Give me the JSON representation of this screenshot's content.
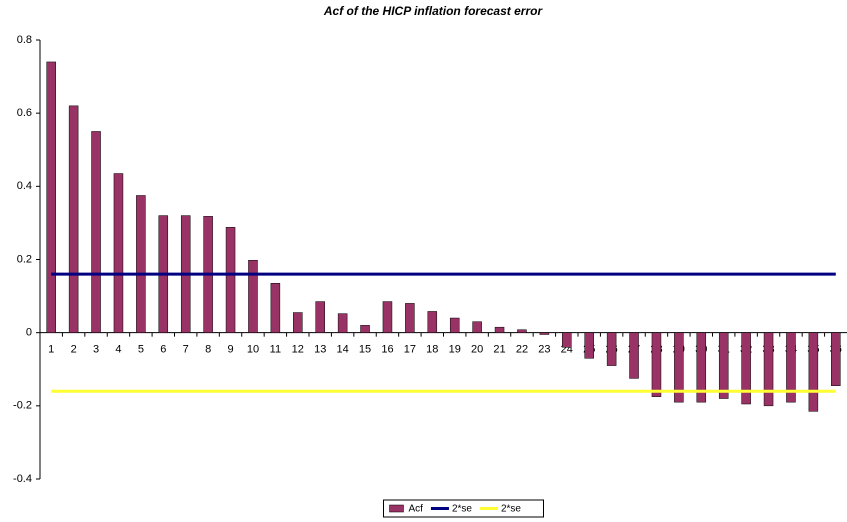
{
  "chart_data": {
    "type": "bar",
    "title": "Acf of the HICP inflation forecast error",
    "categories": [
      "1",
      "2",
      "3",
      "4",
      "5",
      "6",
      "7",
      "8",
      "9",
      "10",
      "11",
      "12",
      "13",
      "14",
      "15",
      "16",
      "17",
      "18",
      "19",
      "20",
      "21",
      "22",
      "23",
      "24",
      "25",
      "26",
      "27",
      "28",
      "29",
      "30",
      "31",
      "32",
      "33",
      "34",
      "35",
      "36"
    ],
    "series": [
      {
        "name": "Acf",
        "type": "bar",
        "color": "#993366",
        "values": [
          0.74,
          0.62,
          0.55,
          0.435,
          0.375,
          0.32,
          0.32,
          0.318,
          0.288,
          0.198,
          0.135,
          0.055,
          0.085,
          0.052,
          0.02,
          0.085,
          0.08,
          0.058,
          0.04,
          0.03,
          0.015,
          0.008,
          -0.005,
          -0.04,
          -0.07,
          -0.09,
          -0.125,
          -0.175,
          -0.19,
          -0.19,
          -0.18,
          -0.195,
          -0.2,
          -0.19,
          -0.215,
          -0.145
        ]
      },
      {
        "name": "2*se",
        "type": "line",
        "color": "#000080",
        "values": [
          0.16,
          0.16,
          0.16,
          0.16,
          0.16,
          0.16,
          0.16,
          0.16,
          0.16,
          0.16,
          0.16,
          0.16,
          0.16,
          0.16,
          0.16,
          0.16,
          0.16,
          0.16,
          0.16,
          0.16,
          0.16,
          0.16,
          0.16,
          0.16,
          0.16,
          0.16,
          0.16,
          0.16,
          0.16,
          0.16,
          0.16,
          0.16,
          0.16,
          0.16,
          0.16,
          0.16
        ]
      },
      {
        "name": "2*se",
        "type": "line",
        "color": "#ffff33",
        "values": [
          -0.16,
          -0.16,
          -0.16,
          -0.16,
          -0.16,
          -0.16,
          -0.16,
          -0.16,
          -0.16,
          -0.16,
          -0.16,
          -0.16,
          -0.16,
          -0.16,
          -0.16,
          -0.16,
          -0.16,
          -0.16,
          -0.16,
          -0.16,
          -0.16,
          -0.16,
          -0.16,
          -0.16,
          -0.16,
          -0.16,
          -0.16,
          -0.16,
          -0.16,
          -0.16,
          -0.16,
          -0.16,
          -0.16,
          -0.16,
          -0.16,
          -0.16
        ]
      }
    ],
    "ylim": [
      -0.4,
      0.8
    ],
    "yticks": [
      -0.4,
      -0.2,
      0,
      0.2,
      0.4,
      0.6,
      0.8
    ],
    "grid": false,
    "legend": "bottom"
  }
}
